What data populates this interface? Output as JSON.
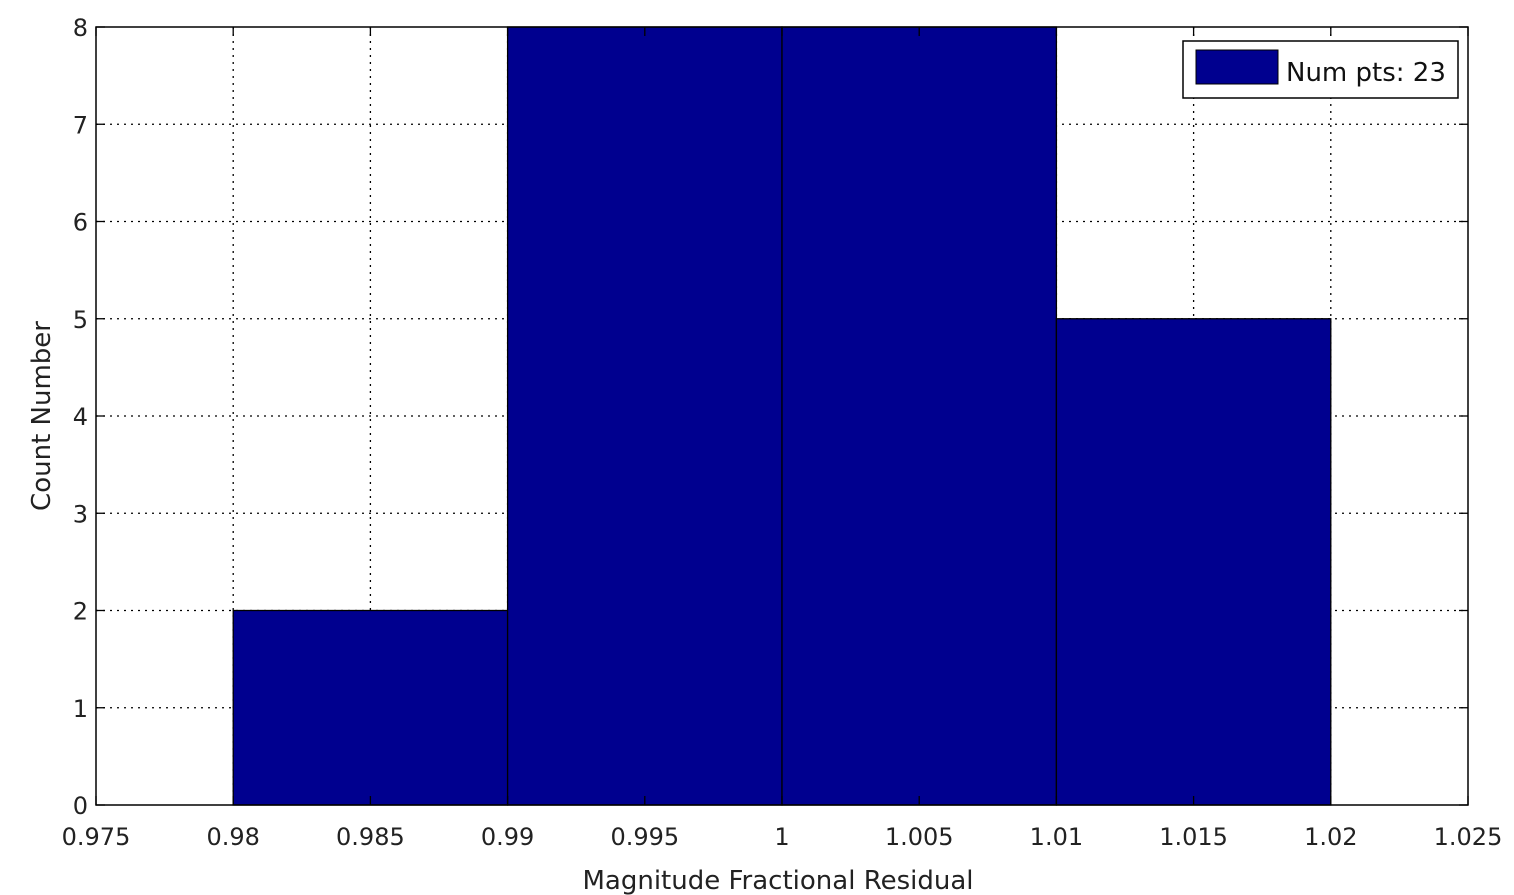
{
  "chart_data": {
    "type": "bar",
    "title": "",
    "xlabel": "Magnitude Fractional Residual",
    "ylabel": "Count Number",
    "xlim": [
      0.975,
      1.025
    ],
    "ylim": [
      0,
      8
    ],
    "x_ticks": [
      "0.975",
      "0.98",
      "0.985",
      "0.99",
      "0.995",
      "1",
      "1.005",
      "1.01",
      "1.015",
      "1.02",
      "1.025"
    ],
    "y_ticks": [
      "0",
      "1",
      "2",
      "3",
      "4",
      "5",
      "6",
      "7",
      "8"
    ],
    "grid": true,
    "legend_position": "top-right",
    "bins": [
      {
        "x0": 0.98,
        "x1": 0.99,
        "count": 2
      },
      {
        "x0": 0.99,
        "x1": 1.0,
        "count": 8
      },
      {
        "x0": 1.0,
        "x1": 1.01,
        "count": 8
      },
      {
        "x0": 1.01,
        "x1": 1.02,
        "count": 5
      }
    ],
    "series": [
      {
        "name": "Num pts: 23",
        "color": "#00008F"
      }
    ]
  }
}
